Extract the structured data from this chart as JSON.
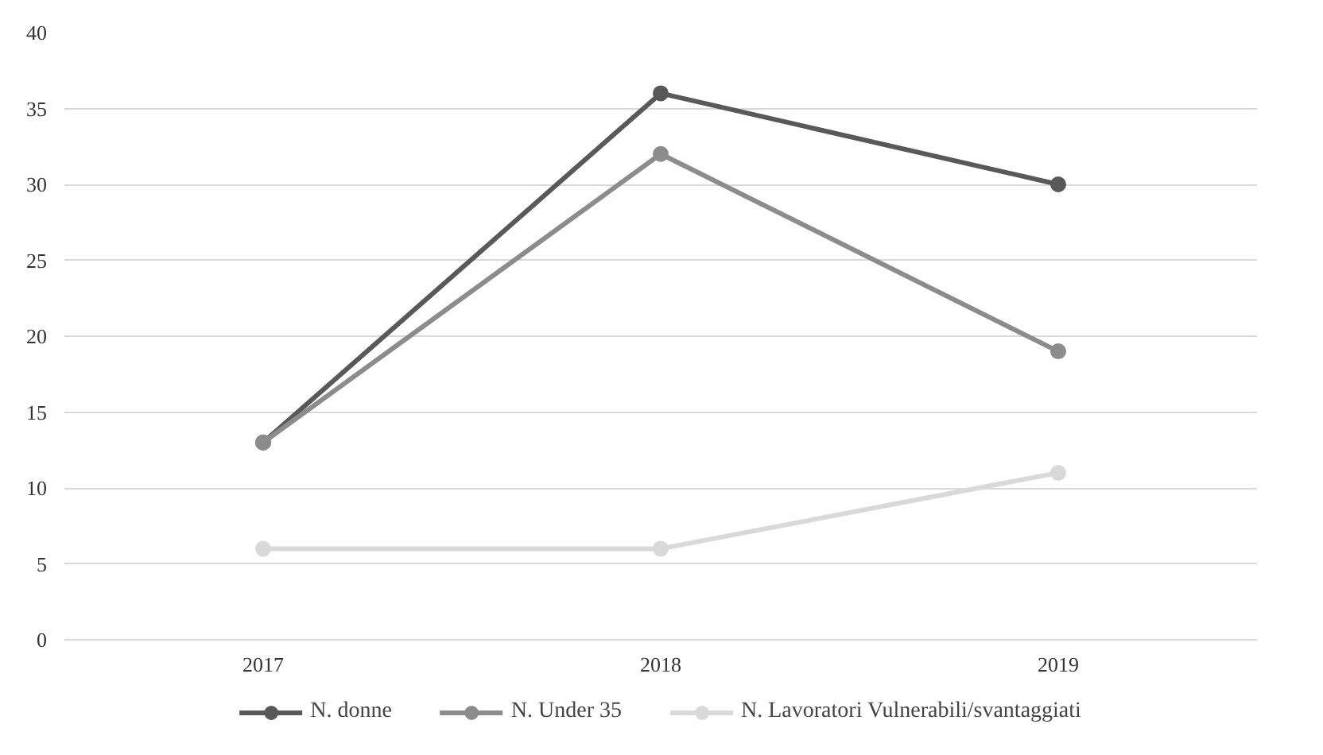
{
  "chart_data": {
    "type": "line",
    "categories": [
      "2017",
      "2018",
      "2019"
    ],
    "series": [
      {
        "name": "N. donne",
        "color": "#595959",
        "values": [
          13,
          36,
          30
        ]
      },
      {
        "name": "N. Under 35",
        "color": "#8c8c8c",
        "values": [
          13,
          32,
          19
        ]
      },
      {
        "name": "N. Lavoratori Vulnerabili/svantaggiati",
        "color": "#d9d9d9",
        "values": [
          6,
          6,
          11
        ]
      }
    ],
    "ylim": [
      0,
      40
    ],
    "yticks": [
      0,
      5,
      10,
      15,
      20,
      25,
      30,
      35,
      40
    ],
    "grid": "y",
    "legend": "bottom",
    "marker": "circle",
    "line_style": "solid"
  }
}
